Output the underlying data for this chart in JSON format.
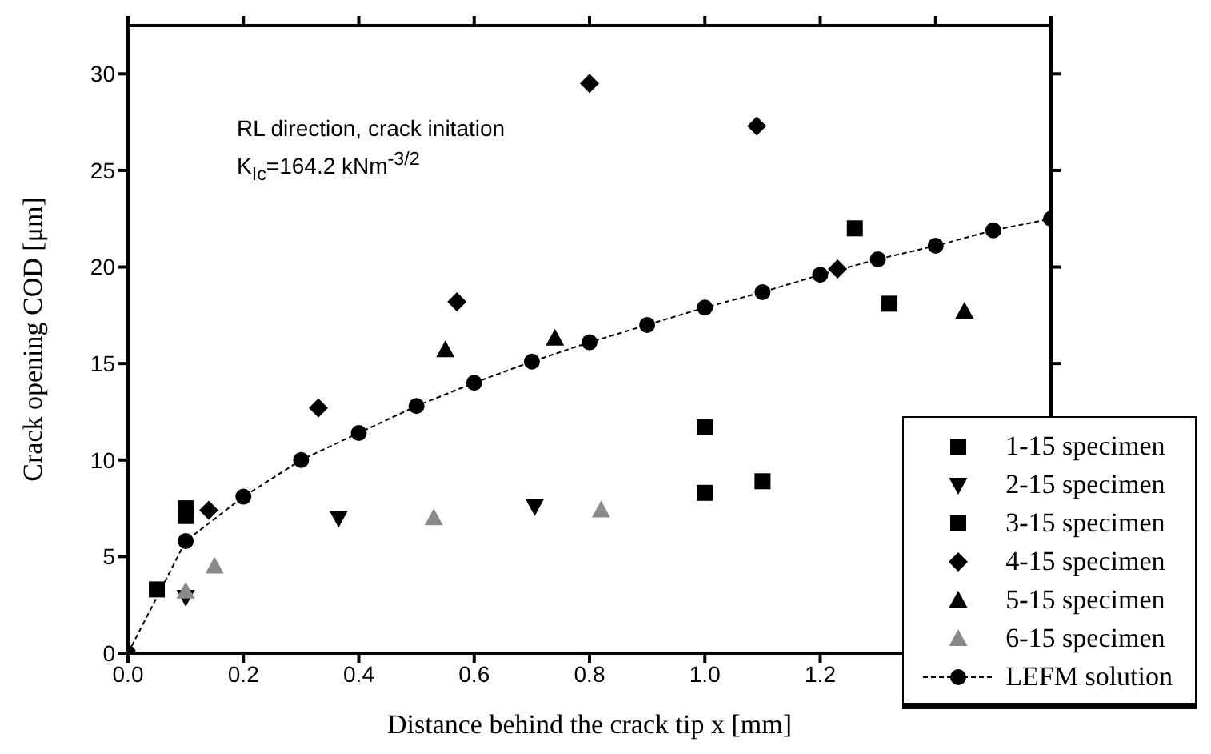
{
  "chart_data": {
    "type": "scatter",
    "xlabel": "Distance behind the crack tip x [mm]",
    "ylabel": "Crack opening COD [μm]",
    "annotations": [
      "RL direction, crack initation",
      "K$_{Ic}$=164.2 kNm$^{-3/2}$"
    ],
    "xlim": [
      0,
      1.6
    ],
    "ylim": [
      0,
      32.5
    ],
    "xticks": [
      {
        "value": 0,
        "label": "0.0"
      },
      {
        "value": 0.2,
        "label": "0.2"
      },
      {
        "value": 0.4,
        "label": "0.4"
      },
      {
        "value": 0.6,
        "label": "0.6"
      },
      {
        "value": 0.8,
        "label": "0.8"
      },
      {
        "value": 1,
        "label": "1.0"
      },
      {
        "value": 1.2,
        "label": "1.2"
      },
      {
        "value": 1.4,
        "label": null
      },
      {
        "value": 1.6,
        "label": null
      }
    ],
    "yticks": [
      0,
      5,
      10,
      15,
      20,
      25,
      30
    ],
    "legend": "bottom right",
    "series": [
      {
        "name": "1-15 specimen",
        "color": "#000000",
        "marker": "square",
        "x": [
          0.05,
          0.1,
          1.0,
          1.26
        ],
        "values": [
          3.3,
          7.5,
          11.7,
          22.0
        ]
      },
      {
        "name": "2-15 specimen",
        "color": "#000000",
        "marker": "triangle-down",
        "x": [
          0.1,
          0.365,
          0.705
        ],
        "values": [
          2.9,
          7.0,
          7.6
        ]
      },
      {
        "name": "3-15 specimen",
        "color": "#000000",
        "marker": "square",
        "x": [
          0.1,
          1.0,
          1.1,
          1.32
        ],
        "values": [
          7.1,
          8.3,
          8.9,
          18.1
        ]
      },
      {
        "name": "4-15 specimen",
        "color": "#000000",
        "marker": "diamond",
        "x": [
          0.14,
          0.33,
          0.57,
          0.8,
          1.09,
          1.23
        ],
        "values": [
          7.4,
          12.7,
          18.2,
          29.5,
          27.3,
          19.9
        ]
      },
      {
        "name": "5-15 specimen",
        "color": "#000000",
        "marker": "triangle",
        "x": [
          0.55,
          0.74,
          1.45
        ],
        "values": [
          15.7,
          16.3,
          17.7
        ]
      },
      {
        "name": "6-15 specimen",
        "color": "#8a8a8a",
        "marker": "triangle",
        "x": [
          0.1,
          0.15,
          0.53,
          0.82
        ],
        "values": [
          3.2,
          4.5,
          7.0,
          7.4
        ]
      },
      {
        "name": "LEFM solution",
        "type": "line",
        "line_style": "dashed",
        "color": "#000000",
        "marker": "circle",
        "x": [
          0,
          0.1,
          0.2,
          0.3,
          0.4,
          0.5,
          0.6,
          0.7,
          0.8,
          0.9,
          1.0,
          1.1,
          1.2,
          1.3,
          1.4,
          1.5,
          1.6
        ],
        "values": [
          0,
          5.8,
          8.1,
          10.0,
          11.4,
          12.8,
          14.0,
          15.1,
          16.1,
          17.0,
          17.9,
          18.7,
          19.6,
          20.4,
          21.1,
          21.9,
          22.5
        ]
      }
    ]
  }
}
